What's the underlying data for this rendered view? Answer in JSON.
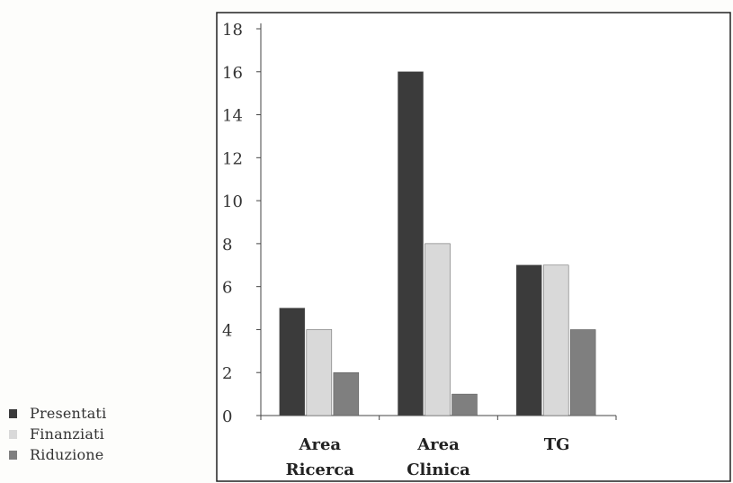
{
  "chart_data": {
    "type": "bar",
    "title": "",
    "xlabel": "",
    "ylabel": "",
    "categories": [
      [
        "Area",
        "Ricerca"
      ],
      [
        "Area",
        "Clinica"
      ],
      [
        "TG"
      ]
    ],
    "series": [
      {
        "name": "Presentati",
        "values": [
          5,
          16,
          7
        ],
        "color": "#3b3b3b"
      },
      {
        "name": "Finanziati",
        "values": [
          4,
          8,
          7
        ],
        "color": "#d9d9d9"
      },
      {
        "name": "Riduzione",
        "values": [
          2,
          1,
          4
        ],
        "color": "#7f7f7f"
      }
    ],
    "ylim": [
      0,
      18
    ],
    "yticks": [
      0,
      2,
      4,
      6,
      8,
      10,
      12,
      14,
      16,
      18
    ],
    "grid": false,
    "legend_position": "bottom-left, outside plot"
  }
}
